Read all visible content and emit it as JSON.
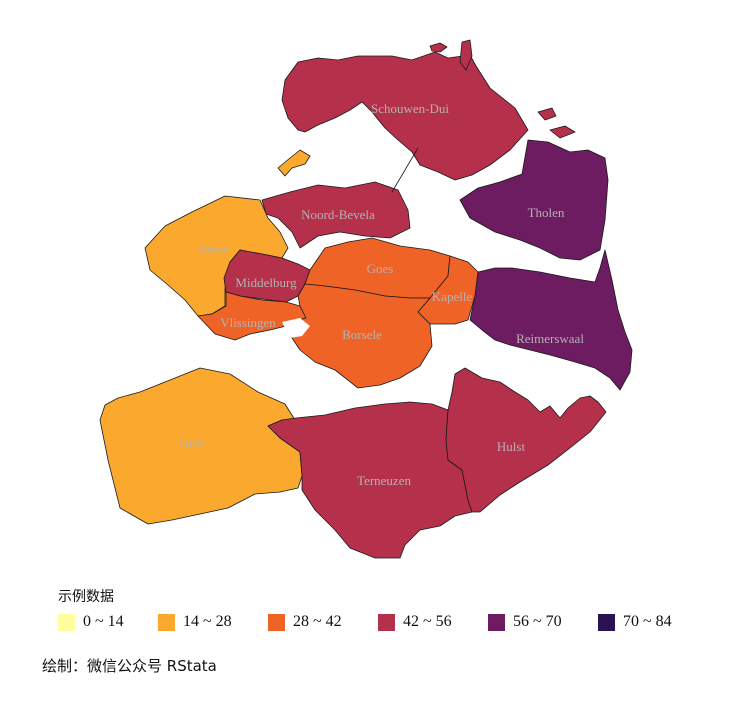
{
  "colors": {
    "c0": "#ffff9f",
    "c1": "#fba92e",
    "c2": "#f06327",
    "c3": "#b5304a",
    "c4": "#6e1c62",
    "c5": "#2b1250"
  },
  "municipalities": [
    {
      "name": "Schouwen-Dui",
      "bin": 3
    },
    {
      "name": "Noord-Bevela",
      "bin": 3
    },
    {
      "name": "Veere",
      "bin": 1
    },
    {
      "name": "Middelburg",
      "bin": 3
    },
    {
      "name": "Vlissingen",
      "bin": 2
    },
    {
      "name": "Goes",
      "bin": 2
    },
    {
      "name": "Kapelle",
      "bin": 2
    },
    {
      "name": "Borsele",
      "bin": 2
    },
    {
      "name": "Tholen",
      "bin": 4
    },
    {
      "name": "Reimerswaal",
      "bin": 4
    },
    {
      "name": "Sluis",
      "bin": 1
    },
    {
      "name": "Terneuzen",
      "bin": 3
    },
    {
      "name": "Hulst",
      "bin": 3
    }
  ],
  "legend": {
    "title": "示例数据",
    "items": [
      {
        "label": "0 ~ 14",
        "color": "#ffff9f"
      },
      {
        "label": "14 ~ 28",
        "color": "#fba92e"
      },
      {
        "label": "28 ~ 42",
        "color": "#f06327"
      },
      {
        "label": "42 ~ 56",
        "color": "#b5304a"
      },
      {
        "label": "56 ~ 70",
        "color": "#6e1c62"
      },
      {
        "label": "70 ~ 84",
        "color": "#2b1250"
      }
    ]
  },
  "caption": "绘制：微信公众号 RStata"
}
